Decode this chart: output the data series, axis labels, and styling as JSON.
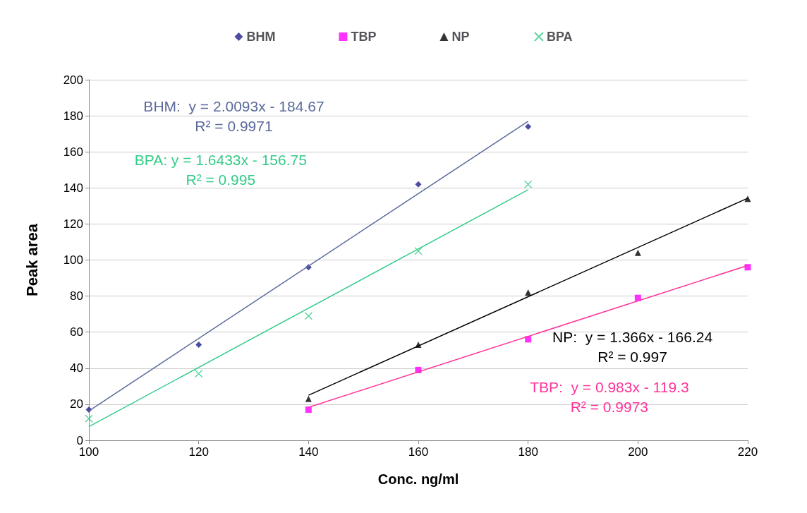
{
  "chart_data": {
    "type": "scatter",
    "xlabel": "Conc. ng/ml",
    "ylabel": "Peak area",
    "xlim": [
      100,
      220
    ],
    "xticks": [
      100,
      120,
      140,
      160,
      180,
      200,
      220
    ],
    "ylim": [
      0,
      200
    ],
    "yticks": [
      0,
      20,
      40,
      60,
      80,
      100,
      120,
      140,
      160,
      180,
      200
    ],
    "grid": "y",
    "legend": "top",
    "series": [
      {
        "name": "BHM",
        "color": "#1f1f8a",
        "marker": "diamond",
        "x": [
          100,
          120,
          140,
          160,
          180
        ],
        "values": [
          17,
          53,
          96,
          142,
          174
        ]
      },
      {
        "name": "TBP",
        "color": "#ff00ff",
        "marker": "square",
        "x": [
          140,
          160,
          180,
          200,
          220
        ],
        "values": [
          17,
          39,
          56,
          79,
          96
        ]
      },
      {
        "name": "NP",
        "color": "#000000",
        "marker": "triangle",
        "x": [
          140,
          160,
          180,
          200,
          220
        ],
        "values": [
          23,
          53,
          82,
          104,
          134
        ]
      },
      {
        "name": "BPA",
        "color": "#33cc88",
        "marker": "cross",
        "x": [
          100,
          120,
          140,
          160,
          180
        ],
        "values": [
          12,
          37,
          69,
          105,
          142
        ]
      },
      {
        "type": "line",
        "color": "#5a6a9a",
        "marker": "none",
        "x": [
          100,
          180
        ],
        "values": [
          16.3,
          177
        ]
      },
      {
        "type": "line",
        "color": "#ff3399",
        "marker": "none",
        "x": [
          140,
          220
        ],
        "values": [
          18.3,
          97
        ]
      },
      {
        "type": "line",
        "color": "#000000",
        "marker": "none",
        "x": [
          140,
          220
        ],
        "values": [
          25,
          134.3
        ]
      },
      {
        "type": "line",
        "color": "#33cc88",
        "marker": "none",
        "x": [
          100,
          180
        ],
        "values": [
          7.6,
          139
        ]
      }
    ],
    "annotations": [
      "BHM:  y = 2.0093x - 184.67\nR² = 0.9971",
      "TBP:  y = 0.983x - 119.3\nR² = 0.9973",
      "NP:  y = 1.366x - 166.24\nR² = 0.997",
      "BPA: y = 1.6433x - 156.75\nR² = 0.995"
    ]
  }
}
